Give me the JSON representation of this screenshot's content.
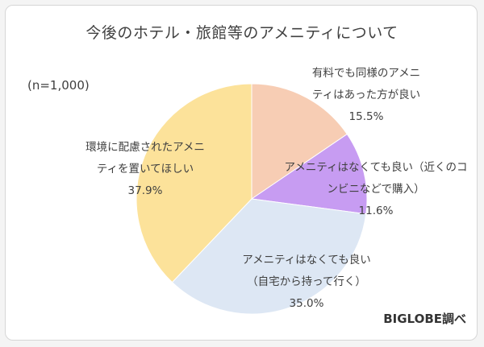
{
  "chart_data": {
    "type": "pie",
    "title": "今後のホテル・旅館等のアメニティについて",
    "sample_size": "(n=1,000)",
    "source": "BIGLOBE調べ",
    "slices": [
      {
        "label_lines": [
          "有料でも同様のアメニ",
          "ティはあった方が良い"
        ],
        "value": 15.5,
        "value_label": "15.5%",
        "color": "#f7cdb4"
      },
      {
        "label_lines": [
          "アメニティはなくても良い（近くのコ",
          "ンビニなどで購入）"
        ],
        "value": 11.6,
        "value_label": "11.6%",
        "color": "#c79cf2"
      },
      {
        "label_lines": [
          "アメニティはなくても良い",
          "（自宅から持って行く）"
        ],
        "value": 35.0,
        "value_label": "35.0%",
        "color": "#dde7f4"
      },
      {
        "label_lines": [
          "環境に配慮されたアメニ",
          "ティを置いてほしい"
        ],
        "value": 37.9,
        "value_label": "37.9%",
        "color": "#fce29a"
      }
    ]
  }
}
